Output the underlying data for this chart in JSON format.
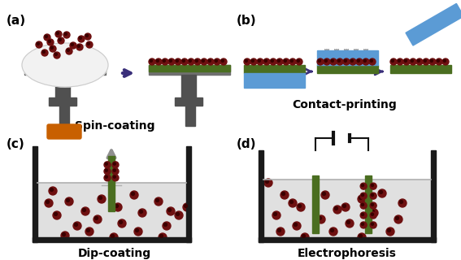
{
  "panel_labels": [
    "(a)",
    "(b)",
    "(c)",
    "(d)"
  ],
  "panel_titles": [
    "Spin-coating",
    "Contact-printing",
    "Dip-coating",
    "Electrophoresis"
  ],
  "colors": {
    "background": "#ffffff",
    "green_layer": "#4a6e20",
    "gray_base": "#707070",
    "dark_gray": "#505050",
    "blue_stamp": "#5b9bd5",
    "arrow_purple": "#3a2f7a",
    "arrow_gray": "#909090",
    "arrow_orange": "#c86000",
    "qd_color": "#6e1010",
    "qd_dark": "#3a0000",
    "liquid": "#e0e0e0",
    "container": "#1a1a1a",
    "wire": "#111111",
    "white_dome": "#f2f2f2"
  }
}
